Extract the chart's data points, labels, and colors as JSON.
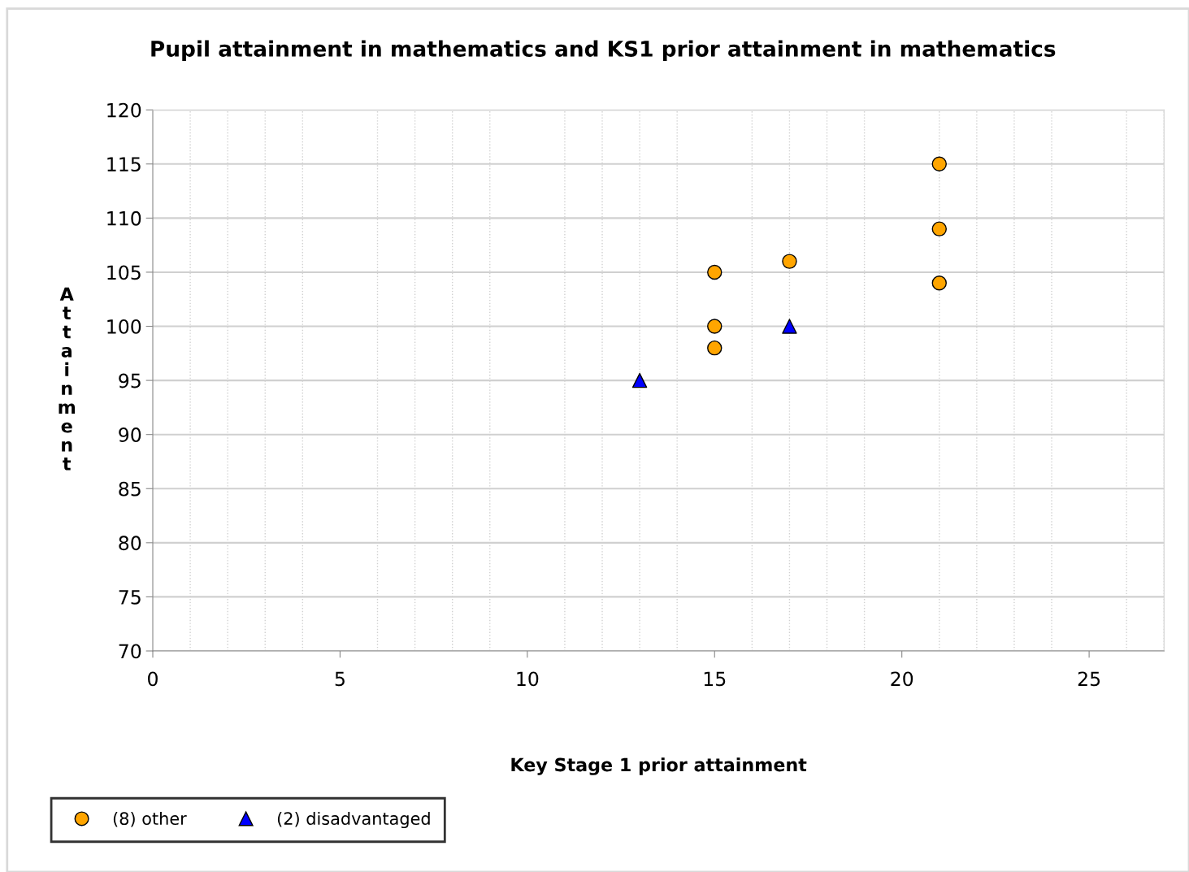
{
  "chart_data": {
    "type": "scatter",
    "title": "Pupil attainment in mathematics and KS1 prior attainment in mathematics",
    "xlabel": "Key Stage 1 prior attainment",
    "ylabel": "Attainment",
    "xlim": [
      0,
      27
    ],
    "xticks": [
      0,
      5,
      10,
      15,
      20,
      25
    ],
    "ylim": [
      70,
      120
    ],
    "yticks": [
      70,
      75,
      80,
      85,
      90,
      95,
      100,
      105,
      110,
      115,
      120
    ],
    "grid": true,
    "legend": "bottom left",
    "series": [
      {
        "name": "(8) other",
        "color": "#ffa500",
        "marker": "circle",
        "x": [
          15,
          15,
          15,
          17,
          21,
          21,
          21
        ],
        "values": [
          105,
          100,
          98,
          106,
          115,
          109,
          104
        ]
      },
      {
        "name": "(2) disadvantaged",
        "color": "#0000ff",
        "marker": "triangle",
        "x": [
          13,
          17
        ],
        "values": [
          95,
          100
        ]
      }
    ]
  }
}
